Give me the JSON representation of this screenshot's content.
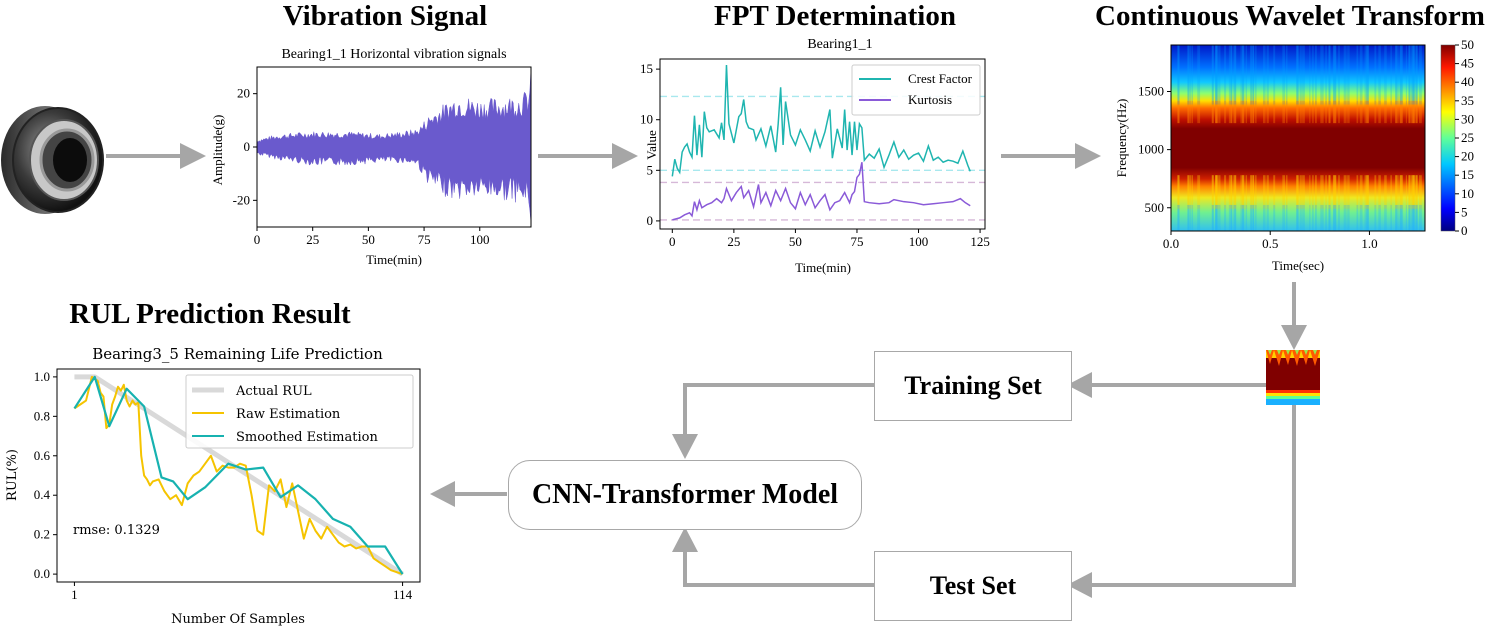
{
  "stages": {
    "vibration": {
      "title": "Vibration Signal"
    },
    "fpt": {
      "title": "FPT Determination"
    },
    "cwt": {
      "title": "Continuous Wavelet Transform"
    },
    "rul": {
      "title": "RUL Prediction Result"
    }
  },
  "blocks": {
    "training_set": "Training Set",
    "test_set": "Test Set",
    "model": "CNN-Transformer Model"
  },
  "icons": {
    "bearing": "bearing-photo",
    "arrow_color": "#a6a6a6",
    "cwt_thumbnail": "scalogram-thumbnail"
  },
  "chart_data": [
    {
      "id": "vibration",
      "type": "area",
      "title": "Bearing1_1 Horizontal vibration signals",
      "xlabel": "Time(min)",
      "ylabel": "Amplitude(g)",
      "xlim": [
        0,
        123
      ],
      "ylim": [
        -30,
        30
      ],
      "xticks": [
        "0",
        "25",
        "50",
        "75",
        "100"
      ],
      "yticks": [
        "20",
        "0",
        "-20"
      ],
      "color": "#6a5acd",
      "envelope": {
        "x": [
          0,
          10,
          25,
          40,
          55,
          65,
          72,
          75,
          78,
          85,
          90,
          100,
          110,
          118,
          122,
          123
        ],
        "upper": [
          3,
          5,
          6,
          6,
          5,
          6,
          7,
          10,
          13,
          17,
          20,
          18,
          19,
          20,
          22,
          30
        ],
        "lower": [
          -3,
          -5,
          -7,
          -7,
          -6,
          -6,
          -7,
          -12,
          -15,
          -19,
          -20,
          -19,
          -20,
          -21,
          -23,
          -30
        ]
      }
    },
    {
      "id": "fpt",
      "type": "line",
      "title": "Bearing1_1",
      "xlabel": "Time(min)",
      "ylabel": "Value",
      "xlim": [
        -5,
        127
      ],
      "ylim": [
        -0.8,
        16
      ],
      "xticks": [
        "0",
        "25",
        "50",
        "75",
        "100",
        "125"
      ],
      "yticks": [
        "0",
        "5",
        "10",
        "15"
      ],
      "legend": [
        "Crest Factor",
        "Kurtosis"
      ],
      "series": [
        {
          "name": "Crest Factor",
          "color": "#1fb5b0",
          "x": [
            0,
            1,
            2,
            3,
            4,
            5,
            6,
            7,
            8,
            9,
            10,
            11,
            12,
            13,
            14,
            15,
            17,
            19,
            20,
            21,
            22,
            23,
            25,
            27,
            28,
            29,
            30,
            31,
            33,
            34,
            36,
            38,
            40,
            42,
            43,
            44,
            45,
            46,
            48,
            50,
            52,
            54,
            56,
            58,
            60,
            62,
            64,
            65,
            67,
            69,
            70,
            71,
            72,
            73,
            74,
            75,
            76,
            77,
            78,
            80,
            82,
            84,
            86,
            88,
            90,
            92,
            94,
            96,
            98,
            100,
            102,
            104,
            106,
            108,
            110,
            112,
            114,
            116,
            118,
            120,
            121
          ],
          "values": [
            4.4,
            6.1,
            5.2,
            4.8,
            6.8,
            7.3,
            7.6,
            6.8,
            6.3,
            10.4,
            6.5,
            9.5,
            6.3,
            10.8,
            9.2,
            8.8,
            9.0,
            8.2,
            9.7,
            8.0,
            15.4,
            9.6,
            7.7,
            10.3,
            10.6,
            12.0,
            9.8,
            9.2,
            9.0,
            8.0,
            9.1,
            7.4,
            9.4,
            6.8,
            9.6,
            13.2,
            7.5,
            11.8,
            8.5,
            7.5,
            9.0,
            8.0,
            6.9,
            8.9,
            7.3,
            8.8,
            11.0,
            6.2,
            9.1,
            7.2,
            11.0,
            7.0,
            9.8,
            6.5,
            9.8,
            7.0,
            9.6,
            9.2,
            6.0,
            6.6,
            6.2,
            7.1,
            5.3,
            6.5,
            7.8,
            6.3,
            7.0,
            6.1,
            6.5,
            6.7,
            5.9,
            7.4,
            6.0,
            6.3,
            5.8,
            6.0,
            5.9,
            5.7,
            6.9,
            5.5,
            4.9
          ]
        },
        {
          "name": "Kurtosis",
          "color": "#8a5ad8",
          "x": [
            0,
            3,
            5,
            7,
            8,
            9,
            10,
            11,
            12,
            14,
            16,
            18,
            20,
            21,
            22,
            24,
            26,
            28,
            29,
            31,
            33,
            35,
            36,
            38,
            40,
            42,
            44,
            46,
            48,
            50,
            52,
            54,
            56,
            58,
            60,
            62,
            64,
            66,
            68,
            70,
            72,
            73,
            74,
            75,
            76,
            77,
            78,
            80,
            84,
            88,
            90,
            94,
            98,
            102,
            106,
            110,
            114,
            117,
            119,
            121
          ],
          "values": [
            0.1,
            0.3,
            0.6,
            0.8,
            0.5,
            1.9,
            1.1,
            2.0,
            1.3,
            1.6,
            1.8,
            2.2,
            1.8,
            2.2,
            3.2,
            2.0,
            2.8,
            3.4,
            2.3,
            3.0,
            1.4,
            3.6,
            1.8,
            2.8,
            1.5,
            3.0,
            2.0,
            3.2,
            1.8,
            1.2,
            2.8,
            1.6,
            2.6,
            1.3,
            2.0,
            2.6,
            1.1,
            1.8,
            2.0,
            2.8,
            1.8,
            2.6,
            2.9,
            4.3,
            4.6,
            5.8,
            1.9,
            1.8,
            1.7,
            1.8,
            2.1,
            1.9,
            1.8,
            1.6,
            1.7,
            1.8,
            1.9,
            2.2,
            1.8,
            1.5
          ]
        }
      ],
      "thresholds": [
        {
          "value": 12.3,
          "color": "#a8e8ee",
          "style": "dashed"
        },
        {
          "value": 5.0,
          "color": "#a8e8ee",
          "style": "dashed"
        },
        {
          "value": 3.8,
          "color": "#d6b8d8",
          "style": "dashed"
        },
        {
          "value": 0.1,
          "color": "#d6b8d8",
          "style": "dashed"
        }
      ]
    },
    {
      "id": "cwt",
      "type": "heatmap",
      "title": "",
      "xlabel": "Time(sec)",
      "ylabel": "Frequency(Hz)",
      "xlim": [
        0.0,
        1.28
      ],
      "ylim": [
        300,
        1900
      ],
      "xticks": [
        "0.0",
        "0.5",
        "1.0"
      ],
      "yticks": [
        "500",
        "1000",
        "1500"
      ],
      "colorbar": {
        "min": 0,
        "max": 50,
        "ticks": [
          "50",
          "45",
          "40",
          "35",
          "30",
          "25",
          "20",
          "15",
          "10",
          "5",
          "0"
        ],
        "colormap": "jet"
      },
      "bands": [
        {
          "freq_range": [
            300,
            600
          ],
          "level": 25
        },
        {
          "freq_range": [
            600,
            750
          ],
          "level": 40
        },
        {
          "freq_range": [
            750,
            1200
          ],
          "level": 50
        },
        {
          "freq_range": [
            1200,
            1350
          ],
          "level": 40
        },
        {
          "freq_range": [
            1350,
            1550
          ],
          "level": 22
        },
        {
          "freq_range": [
            1550,
            1900
          ],
          "level": 8
        }
      ]
    },
    {
      "id": "rul",
      "type": "line",
      "title": "Bearing3_5 Remaining Life Prediction",
      "xlabel": "Number Of Samples",
      "ylabel": "RUL(%)",
      "xlim": [
        -5,
        120
      ],
      "ylim": [
        -0.04,
        1.04
      ],
      "xticks": [
        "1",
        "114"
      ],
      "yticks": [
        "0.0",
        "0.2",
        "0.4",
        "0.6",
        "0.8",
        "1.0"
      ],
      "annotation": "rmse: 0.1329",
      "legend": [
        "Actual RUL",
        "Raw Estimation",
        "Smoothed Estimation"
      ],
      "series": [
        {
          "name": "Actual RUL",
          "color": "#d9d9d9",
          "x": [
            1,
            8,
            114
          ],
          "values": [
            1.0,
            1.0,
            0.0
          ]
        },
        {
          "name": "Raw Estimation",
          "color": "#f5c400",
          "x": [
            1,
            3,
            5,
            7,
            9,
            10,
            11,
            12,
            13,
            14,
            15,
            16,
            17,
            18,
            19,
            20,
            21,
            22,
            23,
            24,
            25,
            26,
            27,
            28,
            30,
            32,
            34,
            36,
            38,
            40,
            42,
            44,
            46,
            48,
            50,
            52,
            54,
            56,
            58,
            60,
            62,
            64,
            66,
            68,
            70,
            72,
            74,
            76,
            78,
            80,
            82,
            84,
            86,
            88,
            90,
            92,
            94,
            96,
            98,
            100,
            102,
            104,
            106,
            108,
            110,
            112,
            114
          ],
          "values": [
            0.84,
            0.86,
            0.88,
            1.0,
            0.98,
            0.92,
            0.9,
            0.74,
            0.76,
            0.86,
            0.9,
            0.95,
            0.93,
            0.96,
            0.88,
            0.85,
            0.88,
            0.86,
            0.87,
            0.6,
            0.5,
            0.48,
            0.45,
            0.47,
            0.48,
            0.42,
            0.38,
            0.4,
            0.35,
            0.46,
            0.5,
            0.52,
            0.56,
            0.6,
            0.52,
            0.55,
            0.54,
            0.54,
            0.56,
            0.55,
            0.4,
            0.22,
            0.2,
            0.45,
            0.42,
            0.48,
            0.34,
            0.46,
            0.32,
            0.18,
            0.28,
            0.22,
            0.18,
            0.24,
            0.2,
            0.16,
            0.14,
            0.15,
            0.13,
            0.14,
            0.14,
            0.08,
            0.06,
            0.04,
            0.02,
            0.01,
            0.0
          ]
        },
        {
          "name": "Smoothed Estimation",
          "color": "#17b2b0",
          "x": [
            1,
            8,
            13,
            19,
            25,
            31,
            35,
            40,
            46,
            54,
            60,
            66,
            72,
            78,
            84,
            90,
            96,
            102,
            108,
            114
          ],
          "values": [
            0.84,
            1.0,
            0.75,
            0.94,
            0.85,
            0.49,
            0.47,
            0.38,
            0.44,
            0.56,
            0.53,
            0.54,
            0.39,
            0.45,
            0.38,
            0.28,
            0.24,
            0.14,
            0.14,
            0.0
          ]
        }
      ]
    }
  ]
}
